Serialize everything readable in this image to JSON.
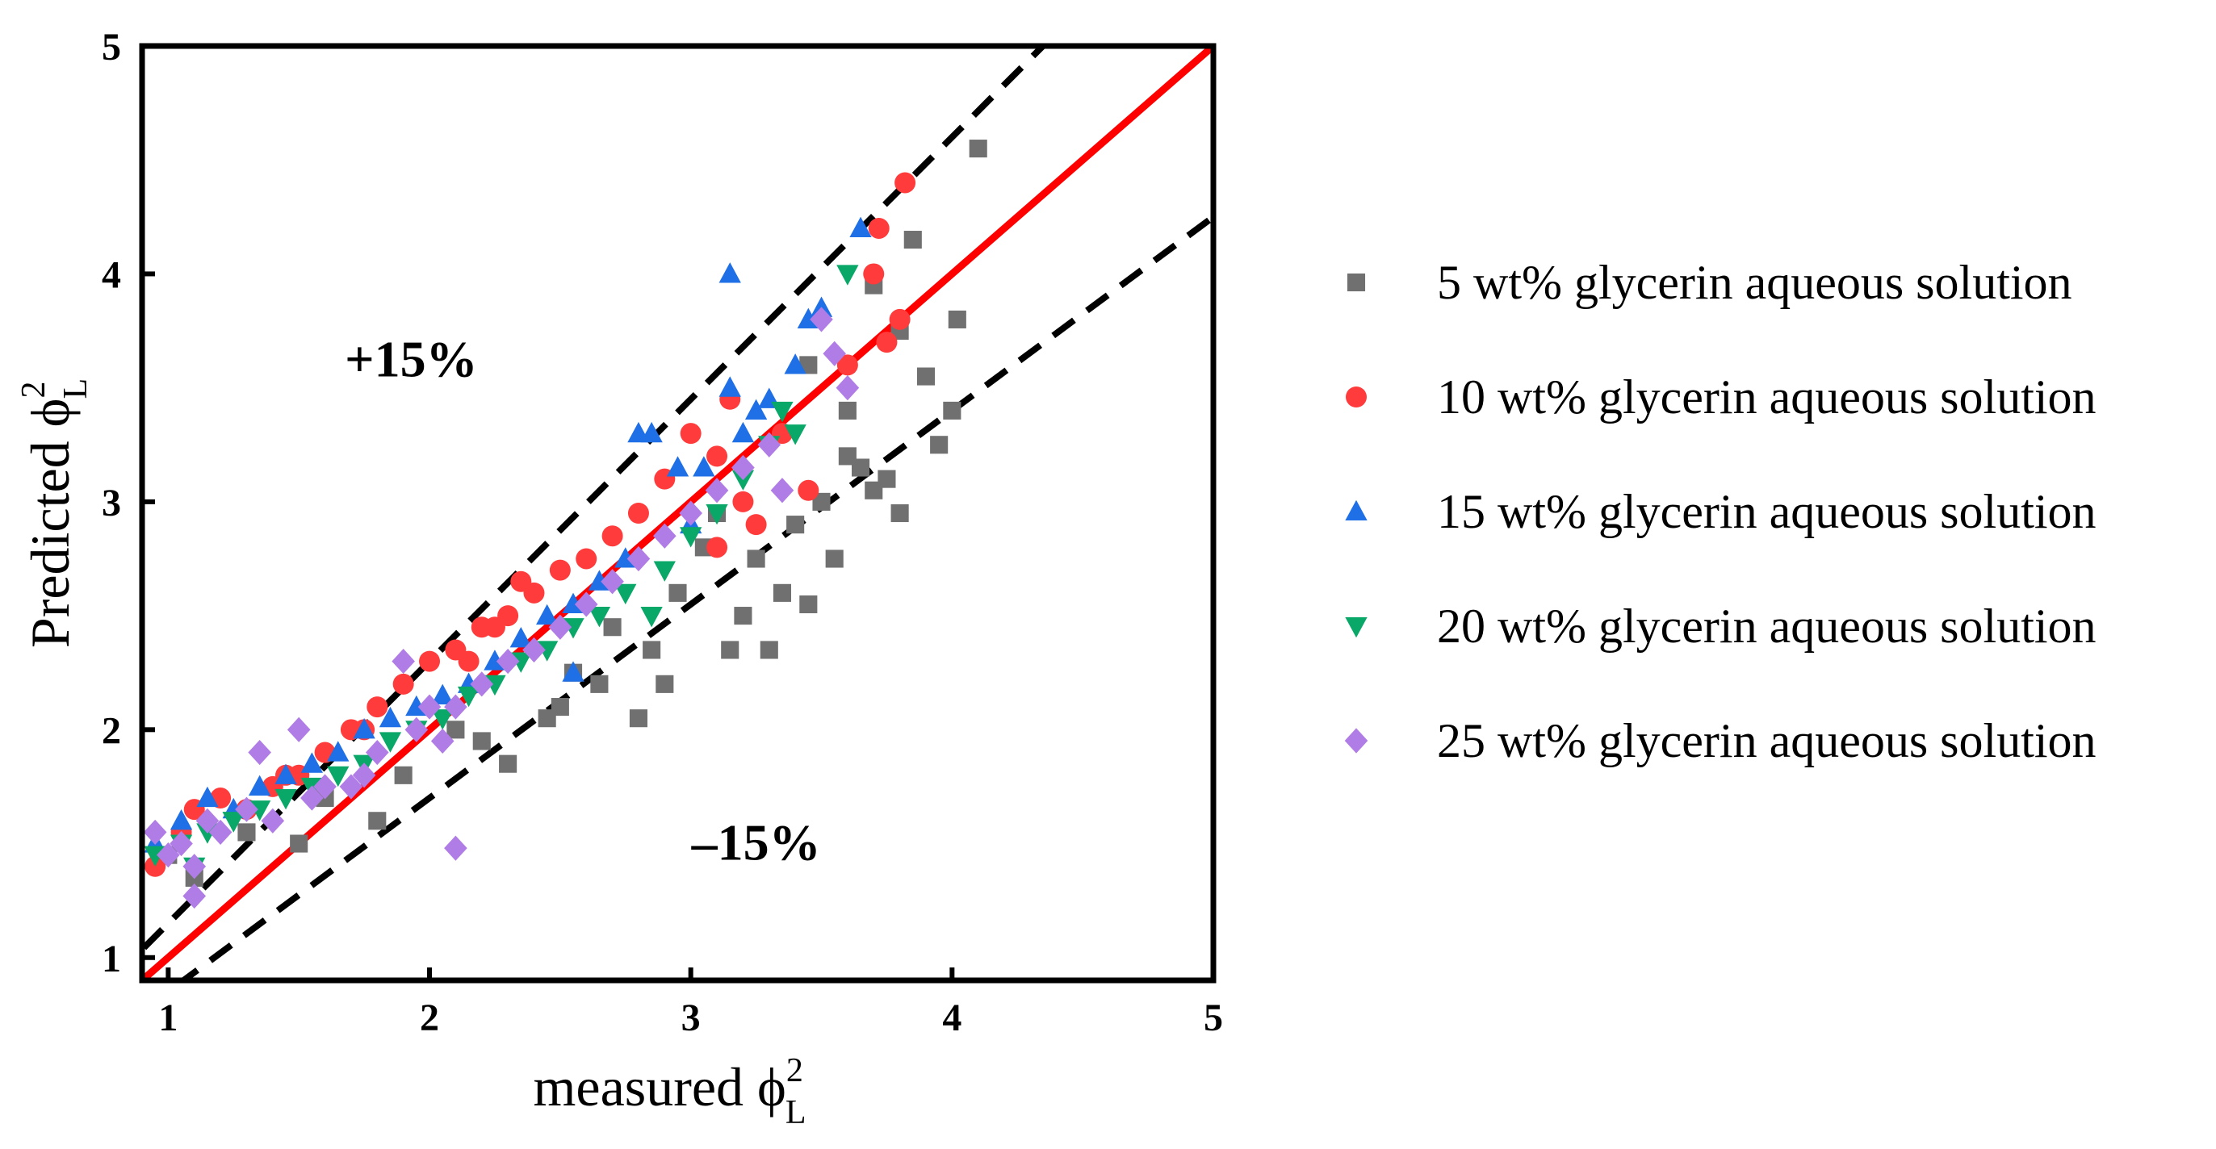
{
  "chart_data": {
    "type": "scatter",
    "title": "",
    "xlabel": "measured",
    "ylabel": "Predicted",
    "axis_symbol": "ϕ",
    "axis_superscript": "2",
    "axis_subscript": "L",
    "xlim": [
      0.9,
      5
    ],
    "ylim": [
      0.9,
      5
    ],
    "xticks": [
      "1",
      "2",
      "3",
      "4",
      "5"
    ],
    "yticks": [
      "1",
      "2",
      "3",
      "4",
      "5"
    ],
    "grid": false,
    "legend_position": "right",
    "reference_lines": [
      {
        "name": "y = x",
        "style": "solid",
        "color": "#ff0000",
        "slope": 1.0
      },
      {
        "name": "+15%",
        "style": "dashed",
        "color": "#000000",
        "slope": 1.15
      },
      {
        "name": "-15%",
        "style": "dashed",
        "color": "#000000",
        "slope": 0.85
      }
    ],
    "annotations": [
      {
        "text": "+15%",
        "x": 1.93,
        "y": 3.55
      },
      {
        "text": "–15%",
        "x": 3.25,
        "y": 1.43
      }
    ],
    "series": [
      {
        "name": "5 wt% glycerin aqueous solution",
        "marker": "square",
        "color": "#707070",
        "x": [
          1.0,
          1.1,
          1.3,
          1.5,
          1.8,
          1.9,
          2.1,
          2.3,
          2.45,
          2.55,
          2.65,
          2.8,
          2.85,
          2.9,
          2.95,
          3.05,
          3.1,
          3.15,
          3.2,
          3.25,
          3.3,
          3.35,
          3.4,
          3.45,
          3.5,
          3.55,
          3.6,
          3.65,
          3.7,
          3.75,
          3.8,
          3.85,
          3.9,
          3.95,
          4.0,
          4.02,
          4.1,
          3.8,
          3.6,
          3.45,
          2.7,
          2.5,
          2.2,
          1.6,
          3.7
        ],
        "y": [
          1.45,
          1.35,
          1.55,
          1.5,
          1.6,
          1.8,
          2.0,
          1.85,
          2.05,
          2.25,
          2.2,
          2.05,
          2.35,
          2.2,
          2.6,
          2.8,
          2.95,
          2.35,
          2.5,
          2.75,
          2.35,
          2.6,
          2.9,
          2.55,
          3.0,
          2.75,
          3.2,
          3.15,
          3.05,
          3.1,
          3.75,
          4.15,
          3.55,
          3.25,
          3.4,
          3.8,
          4.55,
          2.95,
          3.4,
          3.6,
          2.45,
          2.1,
          1.95,
          1.7,
          3.95
        ]
      },
      {
        "name": "10 wt% glycerin aqueous solution",
        "marker": "circle",
        "color": "#ff3b3b",
        "x": [
          0.95,
          1.05,
          1.1,
          1.2,
          1.3,
          1.4,
          1.5,
          1.6,
          1.7,
          1.8,
          1.9,
          2.0,
          2.1,
          2.2,
          2.3,
          2.4,
          2.5,
          2.6,
          2.7,
          2.8,
          2.9,
          3.0,
          3.1,
          3.15,
          3.2,
          3.25,
          3.35,
          3.45,
          3.6,
          3.7,
          3.75,
          3.8,
          3.82,
          3.72,
          3.1,
          2.35,
          2.25,
          2.15,
          1.75,
          1.45
        ],
        "y": [
          1.4,
          1.55,
          1.65,
          1.7,
          1.65,
          1.75,
          1.8,
          1.9,
          2.0,
          2.1,
          2.2,
          2.3,
          2.35,
          2.45,
          2.5,
          2.6,
          2.7,
          2.75,
          2.85,
          2.95,
          3.1,
          3.3,
          2.8,
          3.45,
          3.0,
          2.9,
          3.3,
          3.05,
          3.6,
          4.0,
          3.7,
          3.8,
          4.4,
          4.2,
          3.2,
          2.65,
          2.45,
          2.3,
          2.0,
          1.8
        ]
      },
      {
        "name": "15 wt% glycerin aqueous solution",
        "marker": "triangle-up",
        "color": "#1f6fe6",
        "x": [
          0.95,
          1.05,
          1.15,
          1.25,
          1.35,
          1.45,
          1.55,
          1.65,
          1.75,
          1.85,
          1.95,
          2.05,
          2.15,
          2.25,
          2.35,
          2.45,
          2.55,
          2.65,
          2.75,
          2.8,
          2.85,
          2.95,
          3.0,
          3.05,
          3.15,
          3.2,
          3.25,
          3.3,
          3.4,
          3.45,
          3.5,
          3.65,
          3.15,
          2.55
        ],
        "y": [
          1.5,
          1.6,
          1.7,
          1.65,
          1.75,
          1.8,
          1.85,
          1.9,
          2.0,
          2.05,
          2.1,
          2.15,
          2.2,
          2.3,
          2.4,
          2.5,
          2.55,
          2.65,
          2.75,
          3.3,
          3.3,
          3.15,
          2.9,
          3.15,
          3.5,
          3.3,
          3.4,
          3.45,
          3.6,
          3.8,
          3.85,
          4.2,
          4.0,
          2.25
        ]
      },
      {
        "name": "20 wt% glycerin aqueous solution",
        "marker": "triangle-down",
        "color": "#0aa868",
        "x": [
          0.95,
          1.05,
          1.15,
          1.25,
          1.35,
          1.45,
          1.55,
          1.65,
          1.75,
          1.85,
          1.95,
          2.05,
          2.15,
          2.25,
          2.35,
          2.45,
          2.55,
          2.65,
          2.75,
          2.85,
          2.9,
          3.0,
          3.1,
          3.2,
          3.3,
          3.35,
          3.4,
          3.6,
          1.1,
          1.25
        ],
        "y": [
          1.45,
          1.5,
          1.55,
          1.6,
          1.65,
          1.7,
          1.75,
          1.8,
          1.85,
          1.95,
          2.0,
          2.05,
          2.15,
          2.2,
          2.3,
          2.35,
          2.45,
          2.5,
          2.6,
          2.5,
          2.7,
          2.85,
          2.95,
          3.1,
          3.25,
          3.4,
          3.3,
          4.0,
          1.4,
          1.6
        ]
      },
      {
        "name": "25 wt% glycerin aqueous solution",
        "marker": "diamond",
        "color": "#b07ce6",
        "x": [
          0.95,
          1.0,
          1.05,
          1.1,
          1.15,
          1.2,
          1.3,
          1.35,
          1.4,
          1.5,
          1.55,
          1.6,
          1.7,
          1.75,
          1.8,
          1.9,
          1.95,
          2.0,
          2.05,
          2.1,
          2.2,
          2.3,
          2.4,
          2.5,
          2.6,
          2.7,
          2.8,
          2.9,
          3.0,
          3.1,
          3.2,
          3.3,
          3.35,
          3.5,
          3.55,
          3.6,
          2.1,
          1.1
        ],
        "y": [
          1.55,
          1.45,
          1.5,
          1.4,
          1.6,
          1.55,
          1.65,
          1.9,
          1.6,
          2.0,
          1.7,
          1.75,
          1.75,
          1.8,
          1.9,
          2.3,
          2.0,
          2.1,
          1.95,
          2.1,
          2.2,
          2.3,
          2.35,
          2.45,
          2.55,
          2.65,
          2.75,
          2.85,
          2.95,
          3.05,
          3.15,
          3.25,
          3.05,
          3.8,
          3.65,
          3.5,
          1.48,
          1.27
        ]
      }
    ]
  }
}
